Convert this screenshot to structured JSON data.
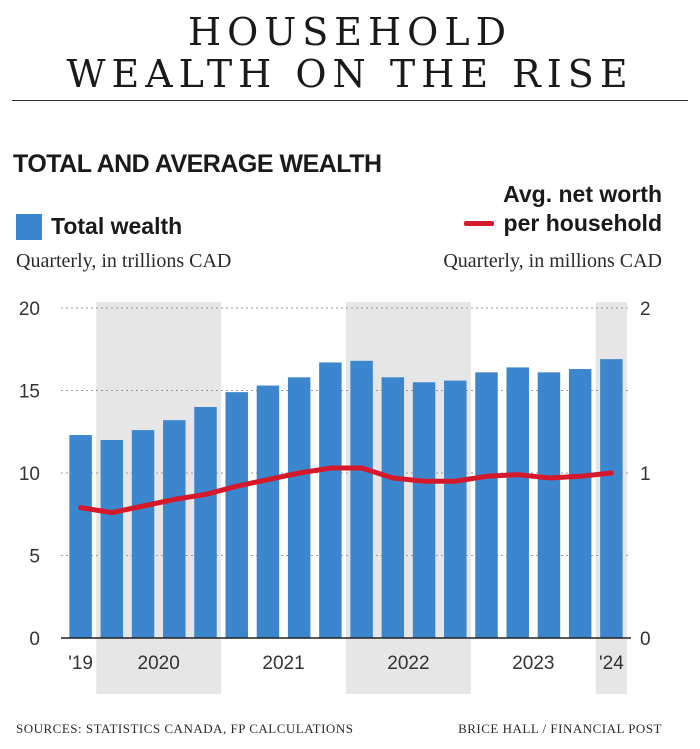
{
  "header": {
    "title_line1": "HOUSEHOLD",
    "title_line2": "WEALTH ON THE RISE",
    "subtitle": "TOTAL AND AVERAGE WEALTH"
  },
  "legend": {
    "bar_label": "Total wealth",
    "bar_unit": "Quarterly, in trillions CAD",
    "line_label_1": "Avg. net worth",
    "line_label_2": "per household",
    "line_unit": "Quarterly, in millions CAD"
  },
  "colors": {
    "bar": "#3b86cc",
    "line": "#d6182b",
    "band": "#e6e6e6"
  },
  "chart_data": {
    "type": "bar",
    "title": "TOTAL AND AVERAGE WEALTH",
    "categories": [
      "Q4 2019",
      "Q1 2020",
      "Q2 2020",
      "Q3 2020",
      "Q4 2020",
      "Q1 2021",
      "Q2 2021",
      "Q3 2021",
      "Q4 2021",
      "Q1 2022",
      "Q2 2022",
      "Q3 2022",
      "Q4 2022",
      "Q1 2023",
      "Q2 2023",
      "Q3 2023",
      "Q4 2023",
      "Q1 2024"
    ],
    "series": [
      {
        "name": "Total wealth",
        "axis": "left",
        "unit": "trillions CAD",
        "type": "bar",
        "values": [
          12.3,
          12.0,
          12.6,
          13.2,
          14.0,
          14.9,
          15.3,
          15.8,
          16.7,
          16.8,
          15.8,
          15.5,
          15.6,
          16.1,
          16.4,
          16.1,
          16.3,
          16.9
        ]
      },
      {
        "name": "Avg. net worth per household",
        "axis": "right",
        "unit": "millions CAD",
        "type": "line",
        "values": [
          0.79,
          0.76,
          0.8,
          0.84,
          0.87,
          0.92,
          0.96,
          1.0,
          1.03,
          1.03,
          0.97,
          0.95,
          0.95,
          0.98,
          0.99,
          0.97,
          0.98,
          1.0
        ]
      }
    ],
    "left_axis": {
      "min": 0,
      "max": 20,
      "ticks": [
        "0",
        "5",
        "10",
        "15",
        "20"
      ]
    },
    "right_axis": {
      "min": 0,
      "max": 2,
      "ticks": [
        "0",
        "1",
        "2"
      ]
    },
    "x_labels": [
      {
        "label": "'19",
        "index": 0
      },
      {
        "label": "2020",
        "index": 2.5
      },
      {
        "label": "2021",
        "index": 6.5
      },
      {
        "label": "2022",
        "index": 10.5
      },
      {
        "label": "2023",
        "index": 14.5
      },
      {
        "label": "'24",
        "index": 17
      }
    ],
    "shaded_years": [
      {
        "year": "2020",
        "from_index": 1,
        "to_index": 4
      },
      {
        "year": "2022",
        "from_index": 9,
        "to_index": 12
      },
      {
        "year": "2024",
        "from_index": 17,
        "to_index": 17
      }
    ],
    "grid": true
  },
  "footer": {
    "sources": "SOURCES: STATISTICS CANADA, FP CALCULATIONS",
    "credit": "BRICE HALL / FINANCIAL POST"
  }
}
